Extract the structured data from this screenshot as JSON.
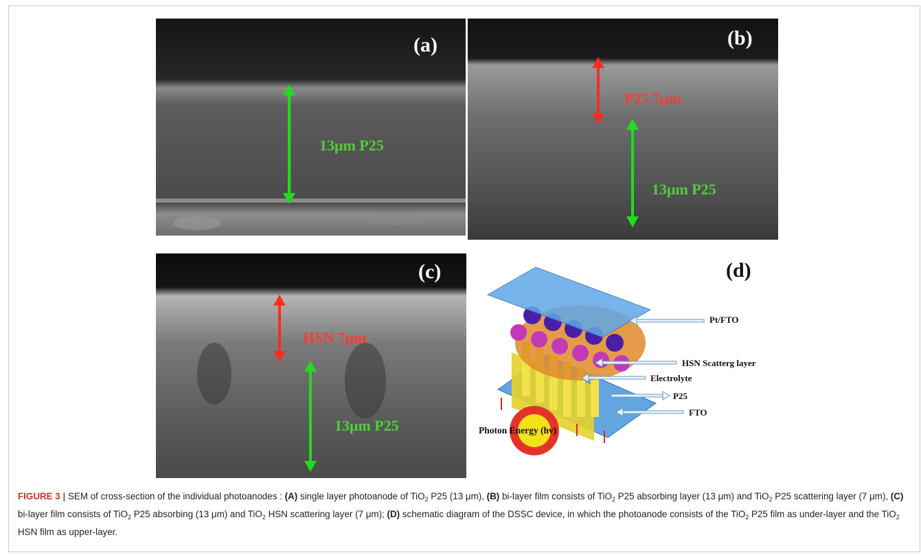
{
  "panels": {
    "a": {
      "label": "(a)",
      "annotations": [
        "13μm P25"
      ]
    },
    "b": {
      "label": "(b)",
      "annotations": [
        "P25 7μm",
        "13μm P25"
      ]
    },
    "c": {
      "label": "(c)",
      "annotations": [
        "HSN 7μm",
        "13μm P25"
      ]
    },
    "d": {
      "label": "(d)",
      "labels": [
        "Pt/FTO",
        "HSN Scatterg  layer",
        "Electrolyte",
        "P25",
        "FTO",
        "Photon Energy (hv)"
      ]
    }
  },
  "caption": {
    "number": "FIGURE 3 |",
    "intro": " SEM of cross-section of the individual photoanodes : ",
    "A_tag": "(A)",
    "A_text1": " single layer photoanode of TiO",
    "A_text2": " P25 (13 μm), ",
    "B_tag": "(B)",
    "B_text1": " bi-layer film consists of TiO",
    "B_text2": " P25 absorbing layer (13 μm) and TiO",
    "B_text3": " P25 scattering layer (7 μm), ",
    "C_tag": "(C)",
    "C_text1": " bi-layer film consists of TiO",
    "C_text2": " P25 absorbing (13 μm) and TiO",
    "C_text3": " HSN scattering layer (7 μm); ",
    "D_tag": "(D)",
    "D_text1": " schematic diagram of the DSSC device, in which the photoanode consists of the TiO",
    "D_text2": " P25 film as under-layer and the TiO",
    "D_text3": " HSN film as upper-layer.",
    "subscript": "2"
  },
  "colors": {
    "green_annotation": "#4fcf3a",
    "red_annotation": "#ff3b2a",
    "figure_number": "#d0312d"
  }
}
